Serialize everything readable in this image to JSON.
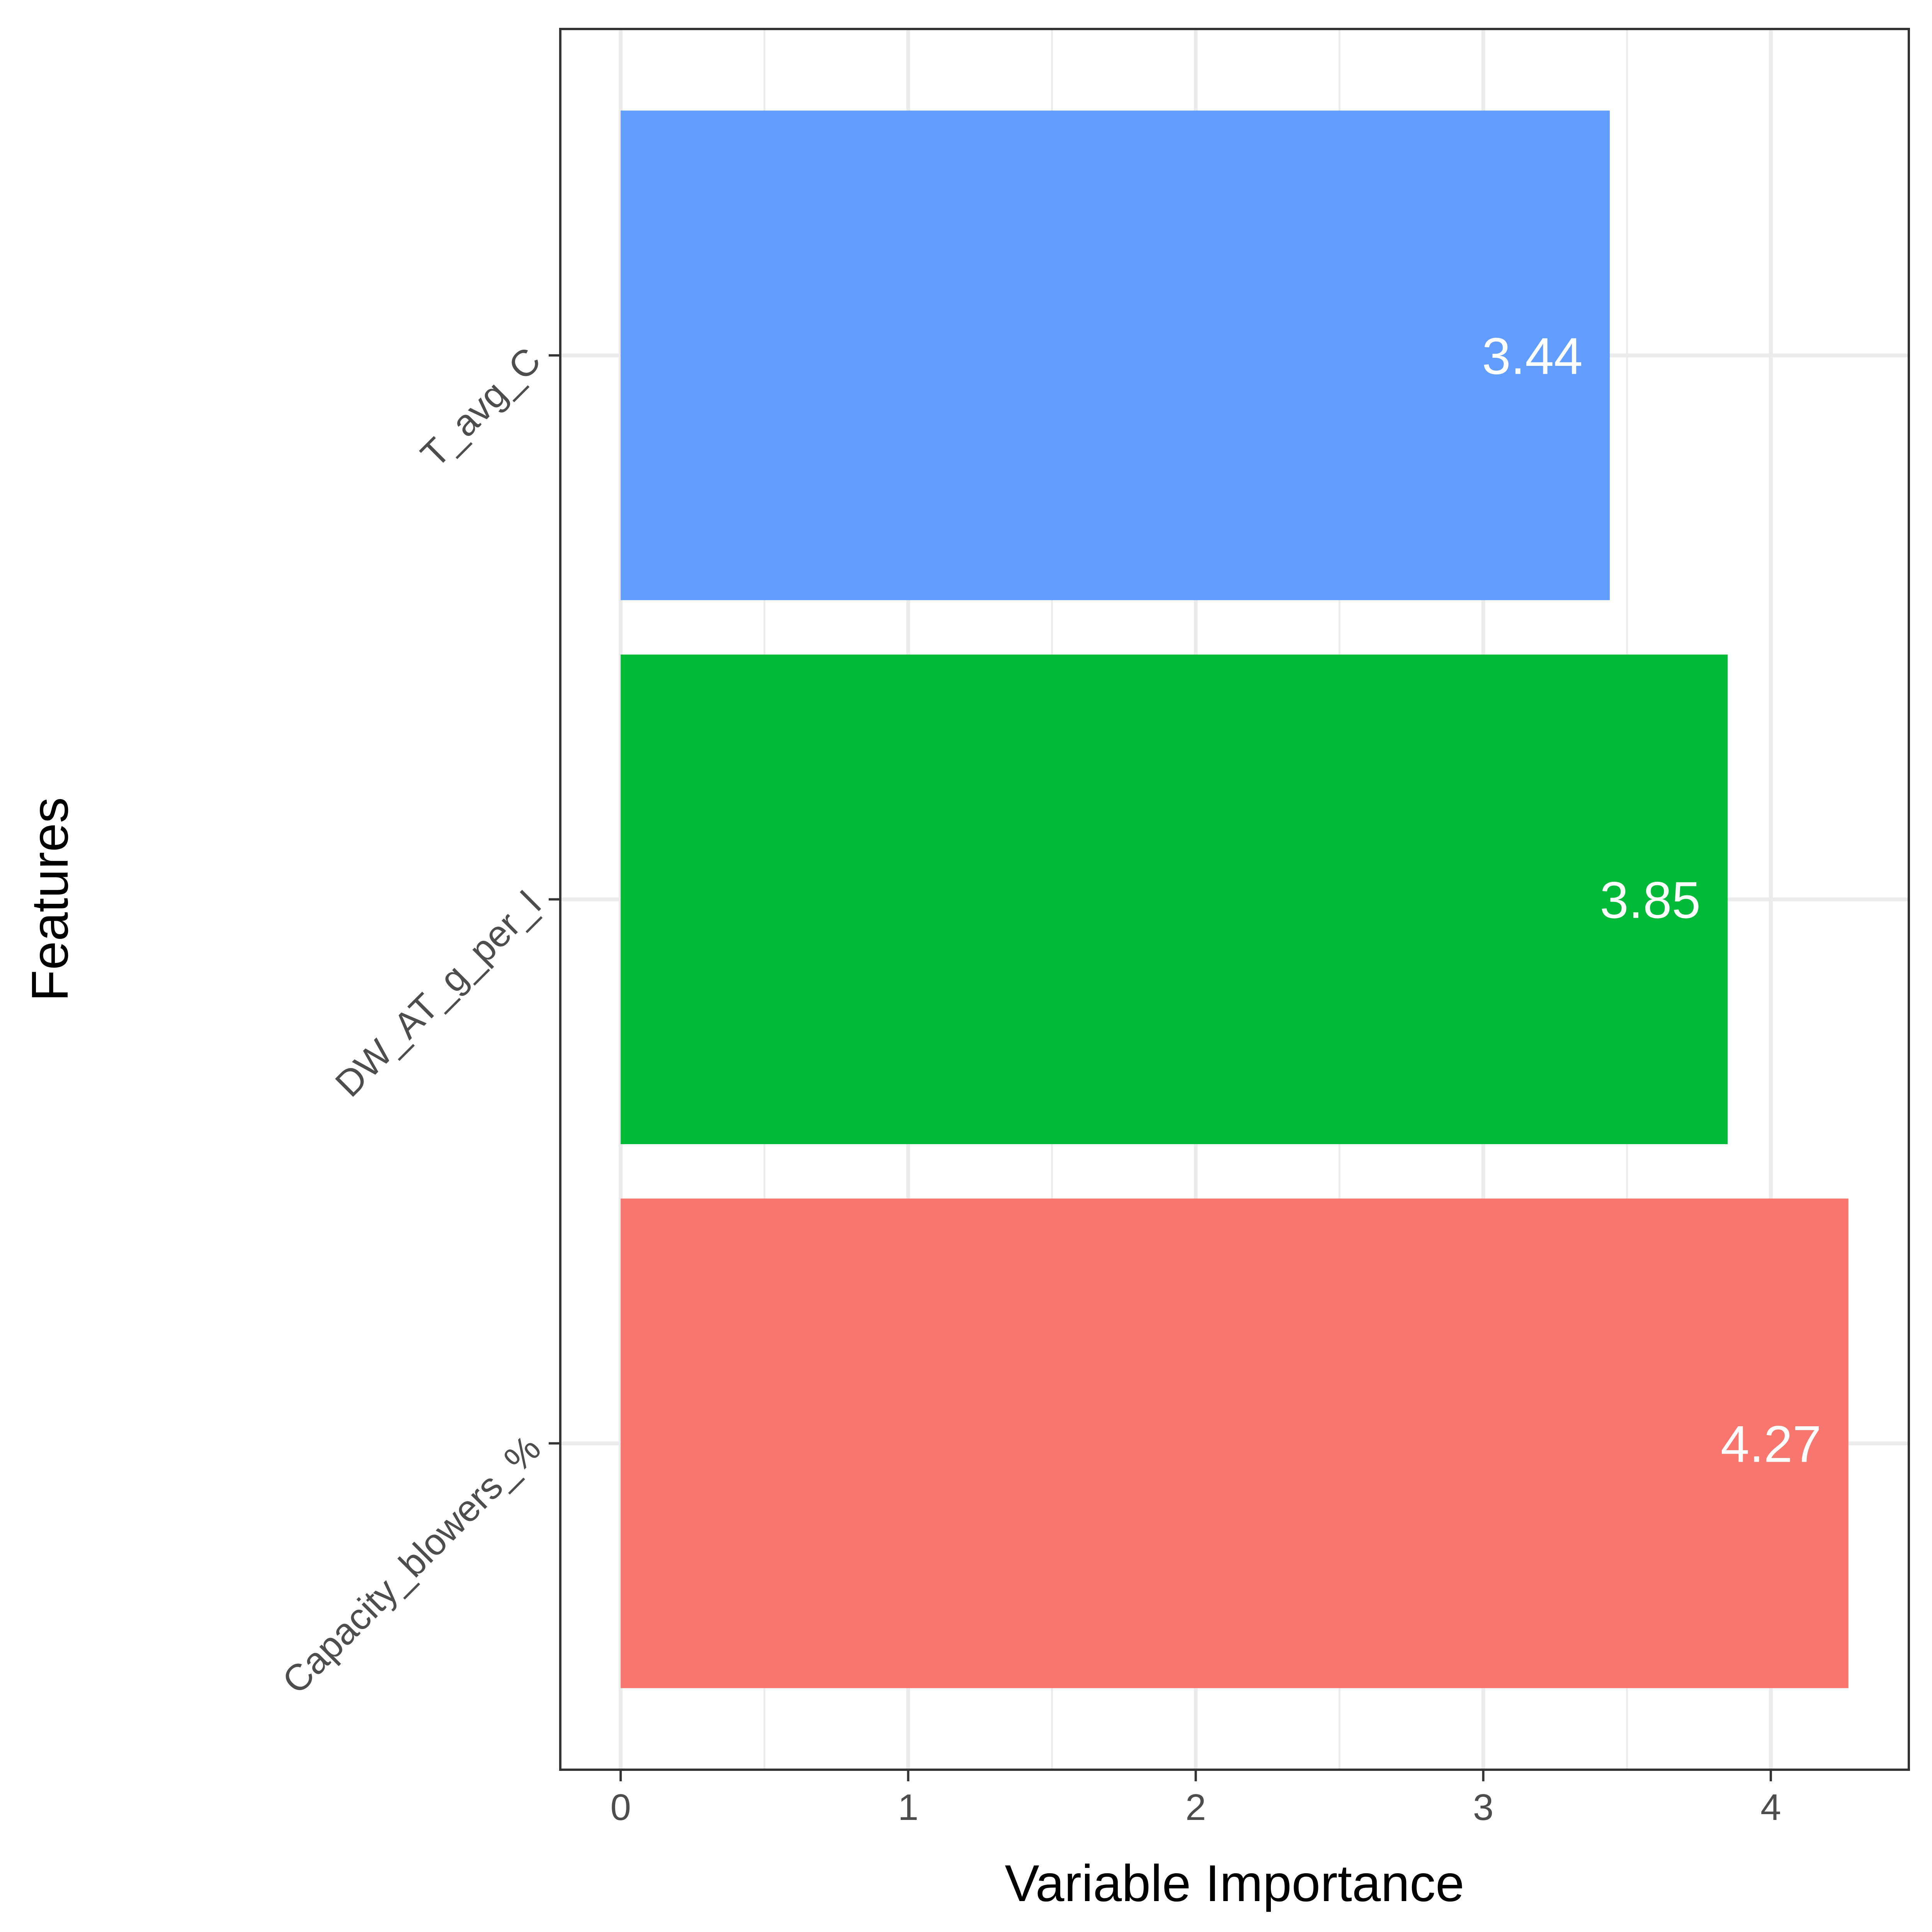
{
  "chart_data": {
    "type": "bar",
    "orientation": "horizontal",
    "categories": [
      "Capacity_blowers_%",
      "DW_AT_g_per_l",
      "T_avg_C"
    ],
    "values": [
      4.27,
      3.85,
      3.44
    ],
    "data_labels": [
      "4.27",
      "3.85",
      "3.44"
    ],
    "colors": [
      "#F8766D",
      "#00BA38",
      "#619CFF"
    ],
    "xlabel": "Variable Importance",
    "ylabel": "Features",
    "xlim": [
      -0.21,
      4.48
    ],
    "xticks": [
      0,
      1,
      2,
      3,
      4
    ],
    "xtick_labels": [
      "0",
      "1",
      "2",
      "3",
      "4"
    ],
    "grid": true,
    "legend": "none",
    "panel_border": true
  }
}
